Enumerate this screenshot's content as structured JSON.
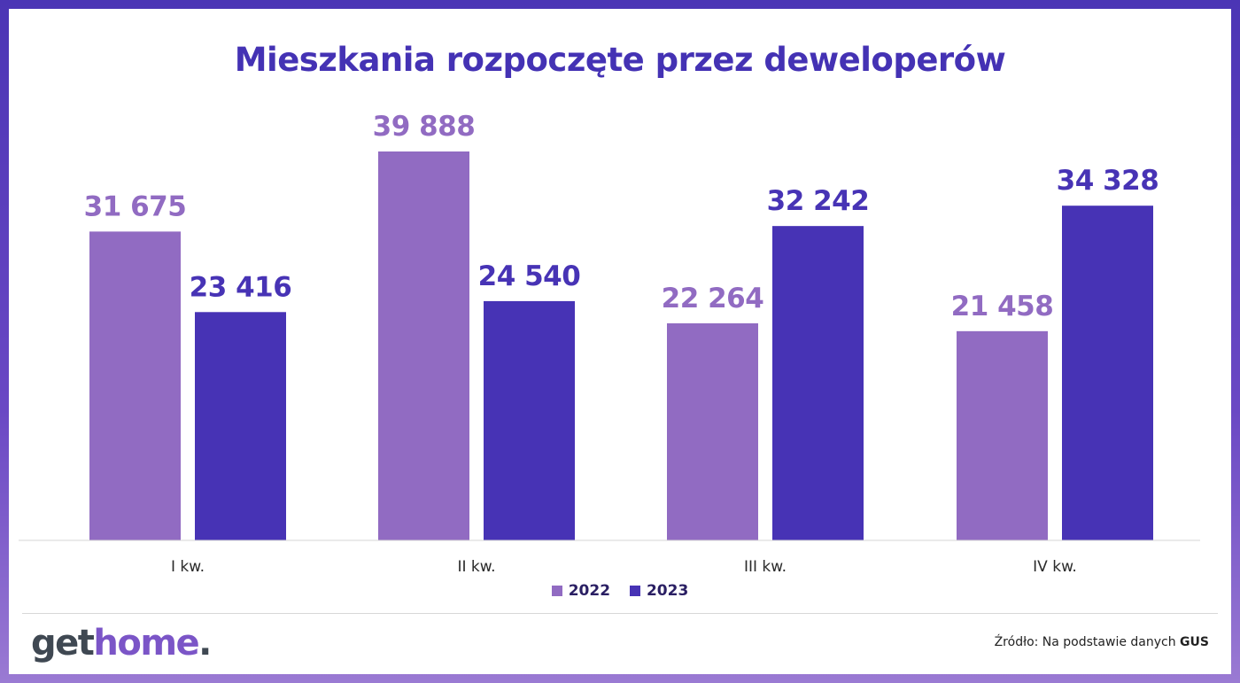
{
  "colors": {
    "series_2022": "#916bc2",
    "series_2023": "#4733b5",
    "title": "#4432b4"
  },
  "chart_data": {
    "type": "bar",
    "title": "Mieszkania rozpoczęte przez deweloperów",
    "categories": [
      "I kw.",
      "II kw.",
      "III kw.",
      "IV kw."
    ],
    "series": [
      {
        "name": "2022",
        "values": [
          31675,
          39888,
          22264,
          21458
        ],
        "labels": [
          "31 675",
          "39 888",
          "22 264",
          "21 458"
        ]
      },
      {
        "name": "2023",
        "values": [
          23416,
          24540,
          32242,
          34328
        ],
        "labels": [
          "23 416",
          "24 540",
          "32 242",
          "34 328"
        ]
      }
    ],
    "ylim": [
      0,
      40000
    ],
    "grid": false,
    "legend": "bottom"
  },
  "footer": {
    "logo": {
      "part1": "get",
      "part2": "home",
      "part3": "."
    },
    "source_prefix": "Źródło: Na podstawie danych ",
    "source_bold": "GUS"
  }
}
